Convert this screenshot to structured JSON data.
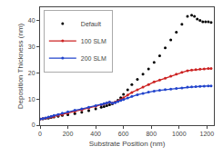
{
  "chart_data": {
    "type": "line",
    "xlabel": "Substrate Position (nm)",
    "ylabel": "Deposition Thickness (nm)",
    "xlim": [
      0,
      1250
    ],
    "ylim": [
      0,
      45
    ],
    "xticks": [
      0,
      200,
      400,
      600,
      800,
      1000,
      1200
    ],
    "yticks": [
      0,
      10,
      20,
      30,
      40
    ],
    "grid": false,
    "legend": "upper left",
    "series": [
      {
        "name": "Default",
        "color": "black",
        "marker": "dot",
        "line_style": "none",
        "x": [
          0,
          20,
          40,
          60,
          80,
          100,
          130,
          160,
          200,
          250,
          300,
          350,
          400,
          440,
          460,
          480,
          500,
          520,
          540,
          560,
          580,
          600,
          630,
          660,
          700,
          740,
          780,
          820,
          860,
          900,
          940,
          980,
          1020,
          1060,
          1090,
          1110,
          1130,
          1150,
          1170,
          1190,
          1210,
          1230
        ],
        "values": [
          2.3,
          2.4,
          2.6,
          2.7,
          2.9,
          3.1,
          3.4,
          3.7,
          4.0,
          4.4,
          4.9,
          5.5,
          6.2,
          6.8,
          7.1,
          7.4,
          7.8,
          8.1,
          8.7,
          9.5,
          10.5,
          11.8,
          13.5,
          15.5,
          17.5,
          19.5,
          21.5,
          24.0,
          26.5,
          29.5,
          32.5,
          35.5,
          38.5,
          41.5,
          42.0,
          41.5,
          40.5,
          40.0,
          39.5,
          39.5,
          39.5,
          39.2
        ]
      },
      {
        "name": "100 SLM",
        "color": "#cc2222",
        "marker": "circle",
        "line_style": "solid",
        "x": [
          0,
          20,
          40,
          60,
          80,
          100,
          130,
          160,
          200,
          250,
          300,
          350,
          400,
          440,
          460,
          480,
          500,
          520,
          540,
          560,
          580,
          600,
          630,
          660,
          700,
          740,
          780,
          820,
          860,
          900,
          940,
          980,
          1020,
          1060,
          1090,
          1120,
          1150,
          1180,
          1210,
          1230
        ],
        "values": [
          2.3,
          2.5,
          2.7,
          2.9,
          3.1,
          3.3,
          3.7,
          4.1,
          4.6,
          5.2,
          5.8,
          6.5,
          7.2,
          7.8,
          8.1,
          8.4,
          8.7,
          8.4,
          8.7,
          9.2,
          9.8,
          10.5,
          11.5,
          12.5,
          13.5,
          14.5,
          15.5,
          16.5,
          17.2,
          17.9,
          18.7,
          19.5,
          20.2,
          20.8,
          21.0,
          21.2,
          21.4,
          21.5,
          21.6,
          21.6
        ]
      },
      {
        "name": "200 SLM",
        "color": "#2244cc",
        "marker": "circle",
        "line_style": "solid",
        "x": [
          0,
          20,
          40,
          60,
          80,
          100,
          130,
          160,
          200,
          250,
          300,
          350,
          400,
          440,
          460,
          480,
          500,
          520,
          540,
          560,
          580,
          600,
          630,
          660,
          700,
          740,
          780,
          820,
          860,
          900,
          940,
          980,
          1020,
          1060,
          1090,
          1120,
          1150,
          1180,
          1210,
          1230
        ],
        "values": [
          2.3,
          2.5,
          2.8,
          3.1,
          3.4,
          3.7,
          4.1,
          4.6,
          5.1,
          5.7,
          6.2,
          6.8,
          7.4,
          7.9,
          8.2,
          8.5,
          8.8,
          8.4,
          8.6,
          9.0,
          9.4,
          9.8,
          10.4,
          11.0,
          11.6,
          12.1,
          12.6,
          13.0,
          13.3,
          13.6,
          13.8,
          14.0,
          14.2,
          14.5,
          14.6,
          14.7,
          14.8,
          14.9,
          15.0,
          15.0
        ]
      }
    ]
  }
}
